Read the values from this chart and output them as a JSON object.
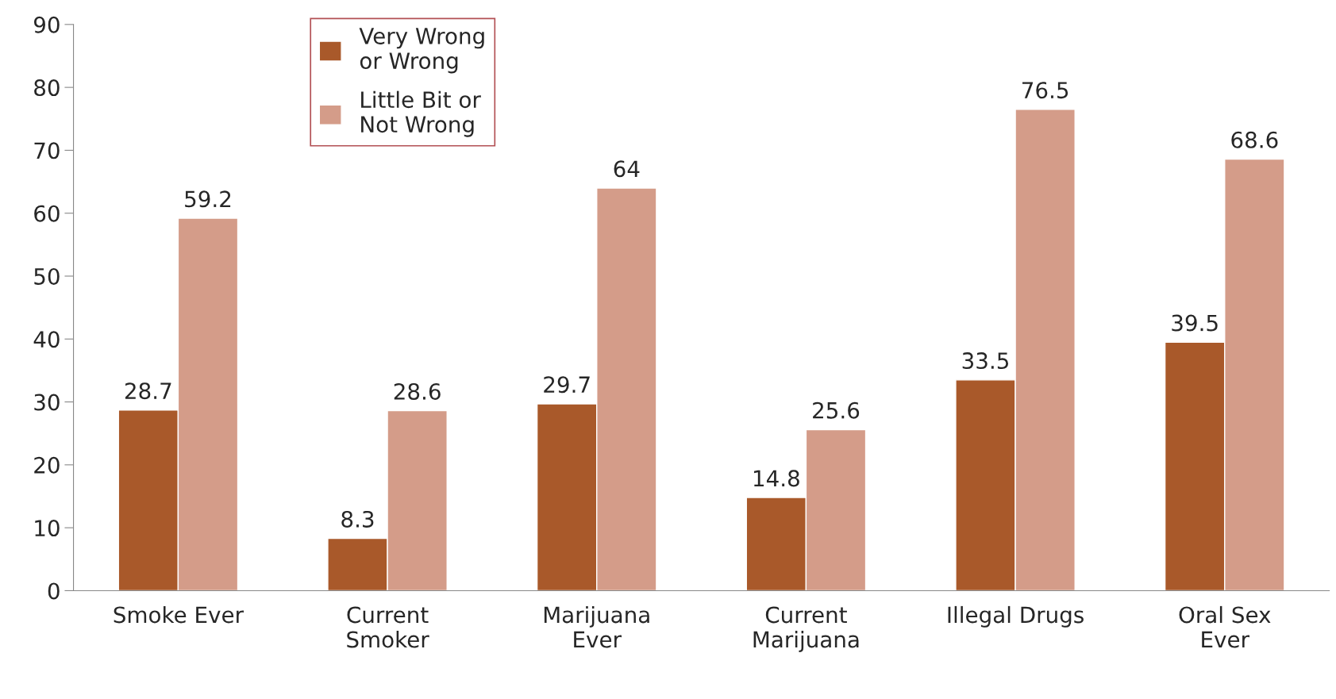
{
  "chart_data": {
    "type": "bar",
    "categories": [
      "Smoke Ever",
      "Current\nSmoker",
      "Marijuana\nEver",
      "Current\nMarijuana",
      "Illegal Drugs",
      "Oral Sex\nEver"
    ],
    "series": [
      {
        "name": "Very Wrong\nor Wrong",
        "color": "#a9592a",
        "values": [
          28.7,
          8.3,
          29.7,
          14.8,
          33.5,
          39.5
        ]
      },
      {
        "name": "Little Bit or\nNot Wrong",
        "color": "#d49c89",
        "values": [
          59.2,
          28.6,
          64,
          25.6,
          76.5,
          68.6
        ]
      }
    ],
    "ylim": [
      0,
      90
    ],
    "yticks": [
      0,
      10,
      20,
      30,
      40,
      50,
      60,
      70,
      80,
      90
    ],
    "data_labels": true,
    "grid": false,
    "legend": "top left"
  }
}
